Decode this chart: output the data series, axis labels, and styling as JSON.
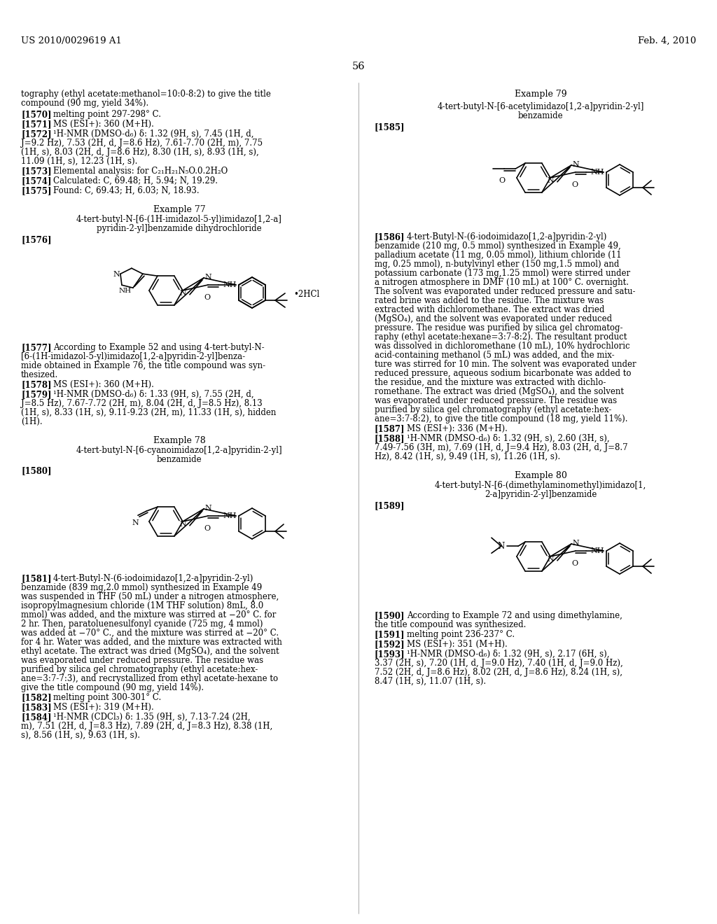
{
  "bg_color": "#ffffff",
  "header_left": "US 2010/0029619 A1",
  "header_right": "Feb. 4, 2010",
  "page_number": "56"
}
